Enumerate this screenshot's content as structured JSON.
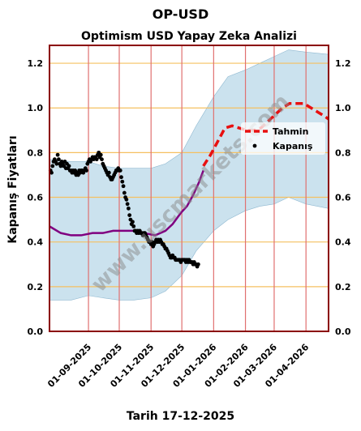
{
  "header": {
    "suptitle": "OP-USD",
    "date_label": "Tarih 17-12-2025"
  },
  "watermark": "www.uscmarkets.com",
  "colors": {
    "frame": "#8b0000",
    "band": "#a9cfe3",
    "vline": "#e07070",
    "hgrid": "#f5c060",
    "ma_line": "#800080",
    "forecast": "#e81010",
    "close": "#000000"
  },
  "chart_data": {
    "type": "line",
    "title": "Optimism USD Yapay Zeka Analizi",
    "xlabel": "",
    "ylabel": "Kapanış Fiyatları",
    "ylim": [
      0.0,
      1.28
    ],
    "xlim": [
      "2025-07-25",
      "2026-04-23"
    ],
    "yticks": [
      0.0,
      0.2,
      0.4,
      0.6,
      0.8,
      1.0,
      1.2
    ],
    "yticklabels": [
      "0.0",
      "0.2",
      "0.4",
      "0.6",
      "0.8",
      "1.0",
      "1.2"
    ],
    "xticks": [
      "2025-09-01",
      "2025-10-01",
      "2025-11-01",
      "2025-12-01",
      "2026-01-01",
      "2026-02-01",
      "2026-03-01",
      "2026-04-01"
    ],
    "xticklabels": [
      "01-09-2025",
      "01-10-2025",
      "01-11-2025",
      "01-12-2025",
      "01-01-2026",
      "01-02-2026",
      "01-03-2026",
      "01-04-2026"
    ],
    "grid": true,
    "legend_position": "right",
    "series": [
      {
        "name": "Kapanış",
        "kind": "scatter",
        "points": [
          [
            "2025-07-26",
            0.72
          ],
          [
            "2025-07-27",
            0.71
          ],
          [
            "2025-07-28",
            0.74
          ],
          [
            "2025-07-29",
            0.76
          ],
          [
            "2025-07-30",
            0.77
          ],
          [
            "2025-07-31",
            0.76
          ],
          [
            "2025-08-01",
            0.75
          ],
          [
            "2025-08-02",
            0.79
          ],
          [
            "2025-08-03",
            0.77
          ],
          [
            "2025-08-04",
            0.75
          ],
          [
            "2025-08-05",
            0.74
          ],
          [
            "2025-08-06",
            0.76
          ],
          [
            "2025-08-07",
            0.75
          ],
          [
            "2025-08-08",
            0.74
          ],
          [
            "2025-08-09",
            0.76
          ],
          [
            "2025-08-10",
            0.73
          ],
          [
            "2025-08-11",
            0.75
          ],
          [
            "2025-08-12",
            0.73
          ],
          [
            "2025-08-13",
            0.74
          ],
          [
            "2025-08-14",
            0.72
          ],
          [
            "2025-08-15",
            0.72
          ],
          [
            "2025-08-16",
            0.71
          ],
          [
            "2025-08-17",
            0.72
          ],
          [
            "2025-08-18",
            0.71
          ],
          [
            "2025-08-19",
            0.72
          ],
          [
            "2025-08-20",
            0.7
          ],
          [
            "2025-08-21",
            0.71
          ],
          [
            "2025-08-22",
            0.7
          ],
          [
            "2025-08-23",
            0.72
          ],
          [
            "2025-08-24",
            0.71
          ],
          [
            "2025-08-25",
            0.72
          ],
          [
            "2025-08-26",
            0.72
          ],
          [
            "2025-08-27",
            0.71
          ],
          [
            "2025-08-28",
            0.72
          ],
          [
            "2025-08-29",
            0.73
          ],
          [
            "2025-08-30",
            0.72
          ],
          [
            "2025-08-31",
            0.75
          ],
          [
            "2025-09-01",
            0.76
          ],
          [
            "2025-09-02",
            0.77
          ],
          [
            "2025-09-03",
            0.76
          ],
          [
            "2025-09-04",
            0.77
          ],
          [
            "2025-09-05",
            0.78
          ],
          [
            "2025-09-06",
            0.77
          ],
          [
            "2025-09-07",
            0.78
          ],
          [
            "2025-09-08",
            0.78
          ],
          [
            "2025-09-09",
            0.77
          ],
          [
            "2025-09-10",
            0.79
          ],
          [
            "2025-09-11",
            0.8
          ],
          [
            "2025-09-12",
            0.78
          ],
          [
            "2025-09-13",
            0.79
          ],
          [
            "2025-09-14",
            0.77
          ],
          [
            "2025-09-15",
            0.75
          ],
          [
            "2025-09-16",
            0.74
          ],
          [
            "2025-09-17",
            0.73
          ],
          [
            "2025-09-18",
            0.72
          ],
          [
            "2025-09-19",
            0.71
          ],
          [
            "2025-09-20",
            0.7
          ],
          [
            "2025-09-21",
            0.71
          ],
          [
            "2025-09-22",
            0.69
          ],
          [
            "2025-09-23",
            0.68
          ],
          [
            "2025-09-24",
            0.68
          ],
          [
            "2025-09-25",
            0.69
          ],
          [
            "2025-09-26",
            0.7
          ],
          [
            "2025-09-27",
            0.71
          ],
          [
            "2025-09-28",
            0.72
          ],
          [
            "2025-09-29",
            0.72
          ],
          [
            "2025-09-30",
            0.73
          ],
          [
            "2025-10-01",
            0.72
          ],
          [
            "2025-10-02",
            0.72
          ],
          [
            "2025-10-03",
            0.69
          ],
          [
            "2025-10-04",
            0.67
          ],
          [
            "2025-10-05",
            0.65
          ],
          [
            "2025-10-06",
            0.62
          ],
          [
            "2025-10-07",
            0.6
          ],
          [
            "2025-10-08",
            0.59
          ],
          [
            "2025-10-09",
            0.57
          ],
          [
            "2025-10-10",
            0.55
          ],
          [
            "2025-10-11",
            0.52
          ],
          [
            "2025-10-12",
            0.5
          ],
          [
            "2025-10-13",
            0.48
          ],
          [
            "2025-10-14",
            0.49
          ],
          [
            "2025-10-15",
            0.47
          ],
          [
            "2025-10-16",
            0.45
          ],
          [
            "2025-10-17",
            0.45
          ],
          [
            "2025-10-18",
            0.44
          ],
          [
            "2025-10-19",
            0.45
          ],
          [
            "2025-10-20",
            0.44
          ],
          [
            "2025-10-21",
            0.45
          ],
          [
            "2025-10-22",
            0.44
          ],
          [
            "2025-10-23",
            0.44
          ],
          [
            "2025-10-24",
            0.43
          ],
          [
            "2025-10-25",
            0.44
          ],
          [
            "2025-10-26",
            0.44
          ],
          [
            "2025-10-27",
            0.43
          ],
          [
            "2025-10-28",
            0.42
          ],
          [
            "2025-10-29",
            0.41
          ],
          [
            "2025-10-30",
            0.4
          ],
          [
            "2025-10-31",
            0.4
          ],
          [
            "2025-11-01",
            0.39
          ],
          [
            "2025-11-02",
            0.4
          ],
          [
            "2025-11-03",
            0.38
          ],
          [
            "2025-11-04",
            0.39
          ],
          [
            "2025-11-05",
            0.4
          ],
          [
            "2025-11-06",
            0.41
          ],
          [
            "2025-11-07",
            0.4
          ],
          [
            "2025-11-08",
            0.41
          ],
          [
            "2025-11-09",
            0.4
          ],
          [
            "2025-11-10",
            0.41
          ],
          [
            "2025-11-11",
            0.4
          ],
          [
            "2025-11-12",
            0.39
          ],
          [
            "2025-11-13",
            0.39
          ],
          [
            "2025-11-14",
            0.38
          ],
          [
            "2025-11-15",
            0.37
          ],
          [
            "2025-11-16",
            0.37
          ],
          [
            "2025-11-17",
            0.36
          ],
          [
            "2025-11-18",
            0.35
          ],
          [
            "2025-11-19",
            0.34
          ],
          [
            "2025-11-20",
            0.33
          ],
          [
            "2025-11-21",
            0.33
          ],
          [
            "2025-11-22",
            0.34
          ],
          [
            "2025-11-23",
            0.33
          ],
          [
            "2025-11-24",
            0.33
          ],
          [
            "2025-11-25",
            0.32
          ],
          [
            "2025-11-26",
            0.32
          ],
          [
            "2025-11-27",
            0.32
          ],
          [
            "2025-11-28",
            0.32
          ],
          [
            "2025-11-29",
            0.32
          ],
          [
            "2025-11-30",
            0.31
          ],
          [
            "2025-12-01",
            0.32
          ],
          [
            "2025-12-02",
            0.32
          ],
          [
            "2025-12-03",
            0.32
          ],
          [
            "2025-12-04",
            0.32
          ],
          [
            "2025-12-05",
            0.31
          ],
          [
            "2025-12-06",
            0.32
          ],
          [
            "2025-12-07",
            0.31
          ],
          [
            "2025-12-08",
            0.32
          ],
          [
            "2025-12-09",
            0.31
          ],
          [
            "2025-12-10",
            0.31
          ],
          [
            "2025-12-11",
            0.31
          ],
          [
            "2025-12-12",
            0.3
          ],
          [
            "2025-12-13",
            0.31
          ],
          [
            "2025-12-14",
            0.3
          ],
          [
            "2025-12-15",
            0.3
          ],
          [
            "2025-12-16",
            0.29
          ],
          [
            "2025-12-17",
            0.3
          ]
        ]
      },
      {
        "name": "",
        "kind": "line",
        "points": [
          [
            "2025-07-25",
            0.47
          ],
          [
            "2025-08-05",
            0.44
          ],
          [
            "2025-08-15",
            0.43
          ],
          [
            "2025-08-25",
            0.43
          ],
          [
            "2025-09-05",
            0.44
          ],
          [
            "2025-09-15",
            0.44
          ],
          [
            "2025-09-25",
            0.45
          ],
          [
            "2025-10-05",
            0.45
          ],
          [
            "2025-10-15",
            0.45
          ],
          [
            "2025-10-25",
            0.44
          ],
          [
            "2025-11-05",
            0.43
          ],
          [
            "2025-11-15",
            0.45
          ],
          [
            "2025-11-22",
            0.48
          ],
          [
            "2025-11-30",
            0.53
          ],
          [
            "2025-12-06",
            0.56
          ],
          [
            "2025-12-12",
            0.61
          ],
          [
            "2025-12-18",
            0.67
          ],
          [
            "2025-12-22",
            0.72
          ]
        ]
      },
      {
        "name": "Tahmin",
        "kind": "dashed",
        "points": [
          [
            "2025-12-22",
            0.74
          ],
          [
            "2025-12-29",
            0.79
          ],
          [
            "2026-01-05",
            0.85
          ],
          [
            "2026-01-12",
            0.91
          ],
          [
            "2026-01-19",
            0.92
          ],
          [
            "2026-01-26",
            0.91
          ],
          [
            "2026-02-02",
            0.9
          ],
          [
            "2026-02-09",
            0.9
          ],
          [
            "2026-02-16",
            0.91
          ],
          [
            "2026-02-23",
            0.94
          ],
          [
            "2026-03-02",
            0.97
          ],
          [
            "2026-03-09",
            1.0
          ],
          [
            "2026-03-16",
            1.02
          ],
          [
            "2026-03-23",
            1.02
          ],
          [
            "2026-03-30",
            1.02
          ],
          [
            "2026-04-06",
            1.0
          ],
          [
            "2026-04-13",
            0.98
          ],
          [
            "2026-04-20",
            0.96
          ],
          [
            "2026-04-23",
            0.95
          ]
        ]
      },
      {
        "name": "",
        "kind": "band",
        "upper": [
          [
            "2025-07-25",
            0.77
          ],
          [
            "2025-08-15",
            0.76
          ],
          [
            "2025-09-01",
            0.76
          ],
          [
            "2025-09-15",
            0.74
          ],
          [
            "2025-10-01",
            0.73
          ],
          [
            "2025-10-15",
            0.73
          ],
          [
            "2025-11-01",
            0.73
          ],
          [
            "2025-11-15",
            0.75
          ],
          [
            "2025-12-01",
            0.8
          ],
          [
            "2025-12-15",
            0.92
          ],
          [
            "2026-01-01",
            1.05
          ],
          [
            "2026-01-15",
            1.14
          ],
          [
            "2026-02-01",
            1.17
          ],
          [
            "2026-02-15",
            1.2
          ],
          [
            "2026-03-01",
            1.23
          ],
          [
            "2026-03-15",
            1.26
          ],
          [
            "2026-04-01",
            1.25
          ],
          [
            "2026-04-23",
            1.24
          ]
        ],
        "lower": [
          [
            "2025-07-25",
            0.14
          ],
          [
            "2025-08-15",
            0.14
          ],
          [
            "2025-09-01",
            0.16
          ],
          [
            "2025-09-15",
            0.15
          ],
          [
            "2025-10-01",
            0.14
          ],
          [
            "2025-10-15",
            0.14
          ],
          [
            "2025-11-01",
            0.15
          ],
          [
            "2025-11-15",
            0.18
          ],
          [
            "2025-12-01",
            0.25
          ],
          [
            "2025-12-15",
            0.36
          ],
          [
            "2026-01-01",
            0.45
          ],
          [
            "2026-01-15",
            0.5
          ],
          [
            "2026-02-01",
            0.54
          ],
          [
            "2026-02-15",
            0.56
          ],
          [
            "2026-03-01",
            0.57
          ],
          [
            "2026-03-15",
            0.6
          ],
          [
            "2026-04-01",
            0.57
          ],
          [
            "2026-04-23",
            0.55
          ]
        ]
      }
    ]
  }
}
